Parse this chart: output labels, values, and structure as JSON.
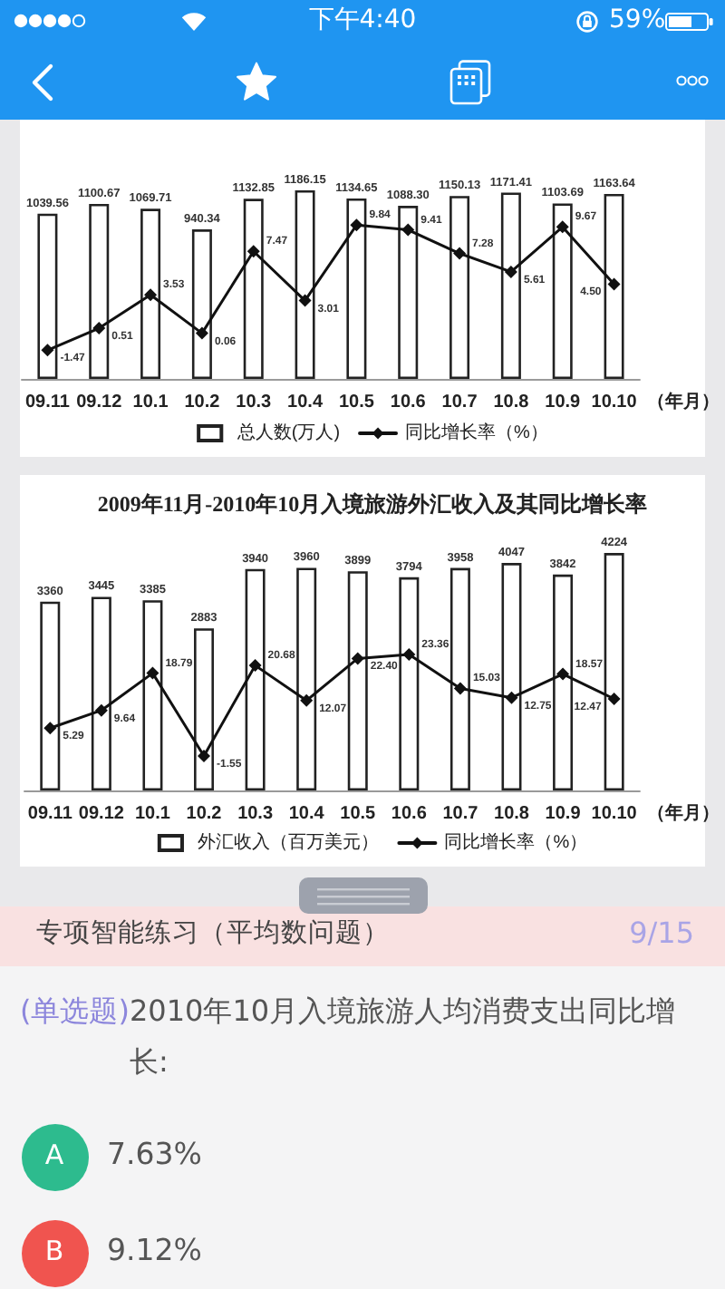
{
  "chart_data": [
    {
      "type": "other",
      "annotations": [
        "下午4:40",
        "59%"
      ]
    },
    {
      "type": "bar",
      "categories": [
        "09.11",
        "09.12",
        "10.1",
        "10.2",
        "10.3",
        "10.4",
        "10.5",
        "10.6",
        "10.7",
        "10.8",
        "10.9",
        "10.10"
      ],
      "xlabel": "（年月）",
      "legend": "bottom",
      "marker": "diamond",
      "series": [
        {
          "name": "总人数(万人)",
          "color": "#ffffff",
          "values": [
            1039.56,
            1100.67,
            1069.71,
            940.34,
            1132.85,
            1186.15,
            1134.65,
            1088.3,
            1150.13,
            1171.41,
            1103.69,
            1163.64
          ],
          "value_labels": [
            "1039.56",
            "1100.67",
            "1069.71",
            "940.34",
            "1132.85",
            "1186.15",
            "1134.65",
            "1088.30",
            "1150.13",
            "1171.41",
            "1103.69",
            "1163.64"
          ]
        },
        {
          "name": "同比增长率（%）",
          "type": "line",
          "axis": "y2",
          "color": "#111111",
          "values": [
            -1.47,
            0.51,
            3.53,
            0.06,
            7.47,
            3.01,
            9.84,
            9.41,
            7.28,
            5.61,
            9.67,
            4.5
          ],
          "value_labels": [
            "-1.47",
            "0.51",
            "3.53",
            "0.06",
            "7.47",
            "3.01",
            "9.84",
            "9.41",
            "7.28",
            "5.61",
            "9.67",
            "4.50"
          ]
        }
      ]
    },
    {
      "type": "bar",
      "title": "2009年11月-2010年10月入境旅游外汇收入及其同比增长率",
      "categories": [
        "09.11",
        "09.12",
        "10.1",
        "10.2",
        "10.3",
        "10.4",
        "10.5",
        "10.6",
        "10.7",
        "10.8",
        "10.9",
        "10.10"
      ],
      "xlabel": "（年月）",
      "legend": "bottom",
      "marker": "diamond",
      "series": [
        {
          "name": "外汇收入（百万美元）",
          "color": "#ffffff",
          "values": [
            3360,
            3445,
            3385,
            2883,
            3940,
            3960,
            3899,
            3794,
            3958,
            4047,
            3842,
            4224
          ],
          "value_labels": [
            "3360",
            "3445",
            "3385",
            "2883",
            "3940",
            "3960",
            "3899",
            "3794",
            "3958",
            "4047",
            "3842",
            "4224"
          ]
        },
        {
          "name": "同比增长率（%）",
          "type": "line",
          "axis": "y2",
          "color": "#111111",
          "values": [
            5.29,
            9.64,
            18.79,
            -1.55,
            20.68,
            12.07,
            22.4,
            23.36,
            15.03,
            12.75,
            18.57,
            12.47
          ],
          "value_labels": [
            "5.29",
            "9.64",
            "18.79",
            "-1.55",
            "20.68",
            "12.07",
            "22.40",
            "23.36",
            "15.03",
            "12.75",
            "18.57",
            "12.47"
          ]
        }
      ]
    },
    {
      "type": "other",
      "annotations": [
        "专项智能练习（平均数问题）",
        "9/15",
        "(单选题)",
        "2010年10月入境旅游人均消费支出同比增长:",
        "A",
        "7.63%",
        "B",
        "9.12%"
      ]
    }
  ]
}
